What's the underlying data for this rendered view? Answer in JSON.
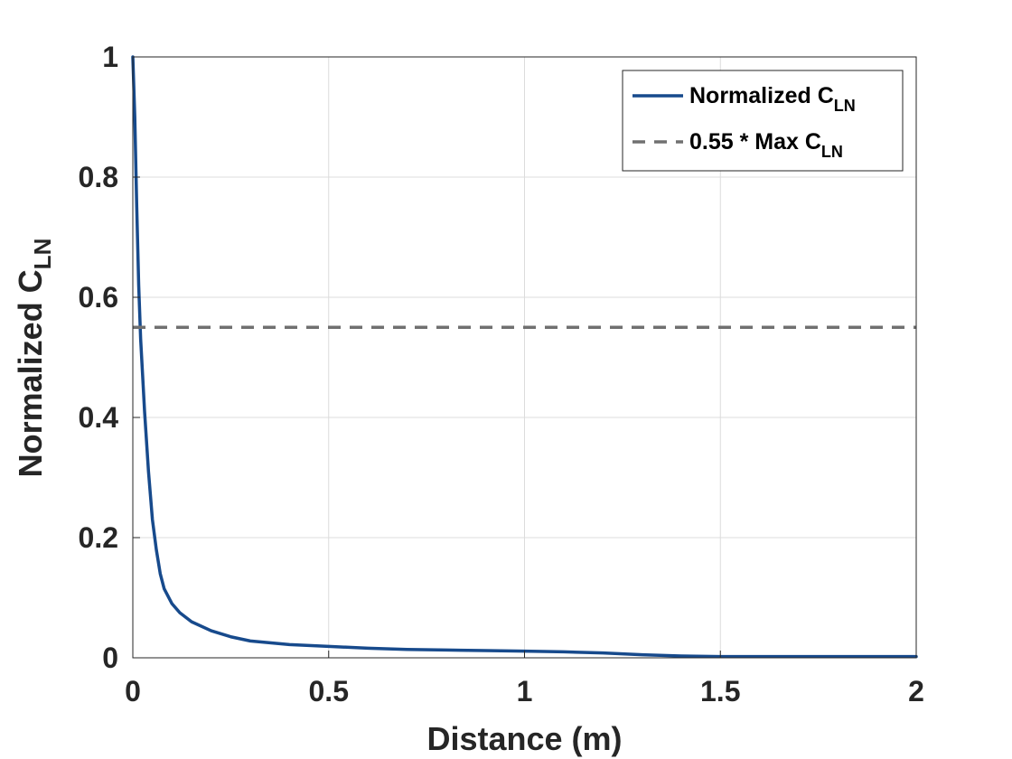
{
  "chart_data": {
    "type": "line",
    "title": "",
    "xlabel": "Distance (m)",
    "ylabel": {
      "main": "Normalized C",
      "sub": "LN"
    },
    "xlim": [
      0,
      2
    ],
    "ylim": [
      0,
      1
    ],
    "xticks": [
      0,
      0.5,
      1,
      1.5,
      2
    ],
    "xtick_labels": [
      "0",
      "0.5",
      "1",
      "1.5",
      "2"
    ],
    "yticks": [
      0,
      0.2,
      0.4,
      0.6,
      0.8,
      1
    ],
    "ytick_labels": [
      "0",
      "0.2",
      "0.4",
      "0.6",
      "0.8",
      "1"
    ],
    "grid": true,
    "legend_position": "top-right",
    "series": [
      {
        "name": "Normalized C",
        "name_sub": "LN",
        "style": "solid",
        "color": "#174A8C",
        "x": [
          0,
          0.005,
          0.01,
          0.015,
          0.02,
          0.025,
          0.03,
          0.04,
          0.05,
          0.06,
          0.07,
          0.08,
          0.1,
          0.12,
          0.15,
          0.2,
          0.25,
          0.3,
          0.4,
          0.5,
          0.6,
          0.7,
          0.8,
          0.9,
          1.0,
          1.1,
          1.2,
          1.3,
          1.4,
          1.5,
          1.6,
          1.7,
          1.8,
          1.9,
          2.0
        ],
        "y": [
          1.0,
          0.9,
          0.75,
          0.62,
          0.53,
          0.47,
          0.41,
          0.31,
          0.23,
          0.18,
          0.14,
          0.115,
          0.09,
          0.075,
          0.06,
          0.045,
          0.035,
          0.028,
          0.022,
          0.019,
          0.016,
          0.014,
          0.013,
          0.012,
          0.011,
          0.01,
          0.008,
          0.005,
          0.003,
          0.002,
          0.002,
          0.002,
          0.002,
          0.002,
          0.002
        ]
      },
      {
        "name": "0.55 * Max C",
        "name_sub": "LN",
        "style": "dashed",
        "color": "#707070",
        "x": [
          0,
          2
        ],
        "y": [
          0.55,
          0.55
        ]
      }
    ]
  }
}
